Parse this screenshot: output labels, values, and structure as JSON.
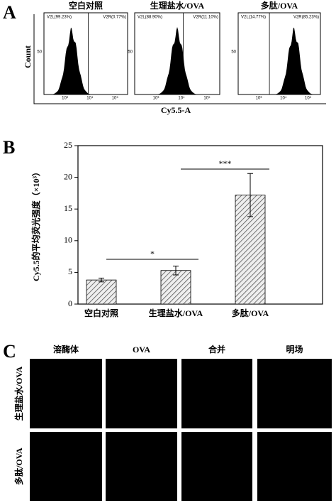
{
  "panel_a": {
    "label": "A",
    "y_label": "Count",
    "x_label": "Cy5.5-A",
    "plots": [
      {
        "title": "空白对照",
        "gate_left": "V2L(99.23%)",
        "gate_right": "V2R(0.77%)"
      },
      {
        "title": "生理盐水/OVA",
        "gate_left": "V2L(88.90%)",
        "gate_right": "V2R(11.10%)"
      },
      {
        "title": "多肽/OVA",
        "gate_left": "V2L(14.77%)",
        "gate_right": "V2R(85.23%)"
      }
    ],
    "y_tick": "50",
    "x_ticks": [
      "10³",
      "10⁴",
      "10⁵"
    ]
  },
  "chart_data": {
    "type": "bar",
    "panel_label": "B",
    "y_label": "Cy5.5的平均荧光强度（×10³）",
    "categories": [
      "空白对照",
      "生理盐水/OVA",
      "多肽/OVA"
    ],
    "values": [
      3.8,
      5.3,
      17.2
    ],
    "errors": [
      0.3,
      0.7,
      3.4
    ],
    "color": "#555555",
    "ylim": [
      0,
      25
    ],
    "yticks": [
      0,
      5,
      10,
      15,
      20,
      25
    ],
    "annotations": [
      "*",
      "***"
    ]
  },
  "panel_c": {
    "label": "C",
    "columns": [
      "溶酶体",
      "OVA",
      "合并",
      "明场"
    ],
    "rows": [
      "生理盐水/OVA",
      "多肽/OVA"
    ]
  }
}
